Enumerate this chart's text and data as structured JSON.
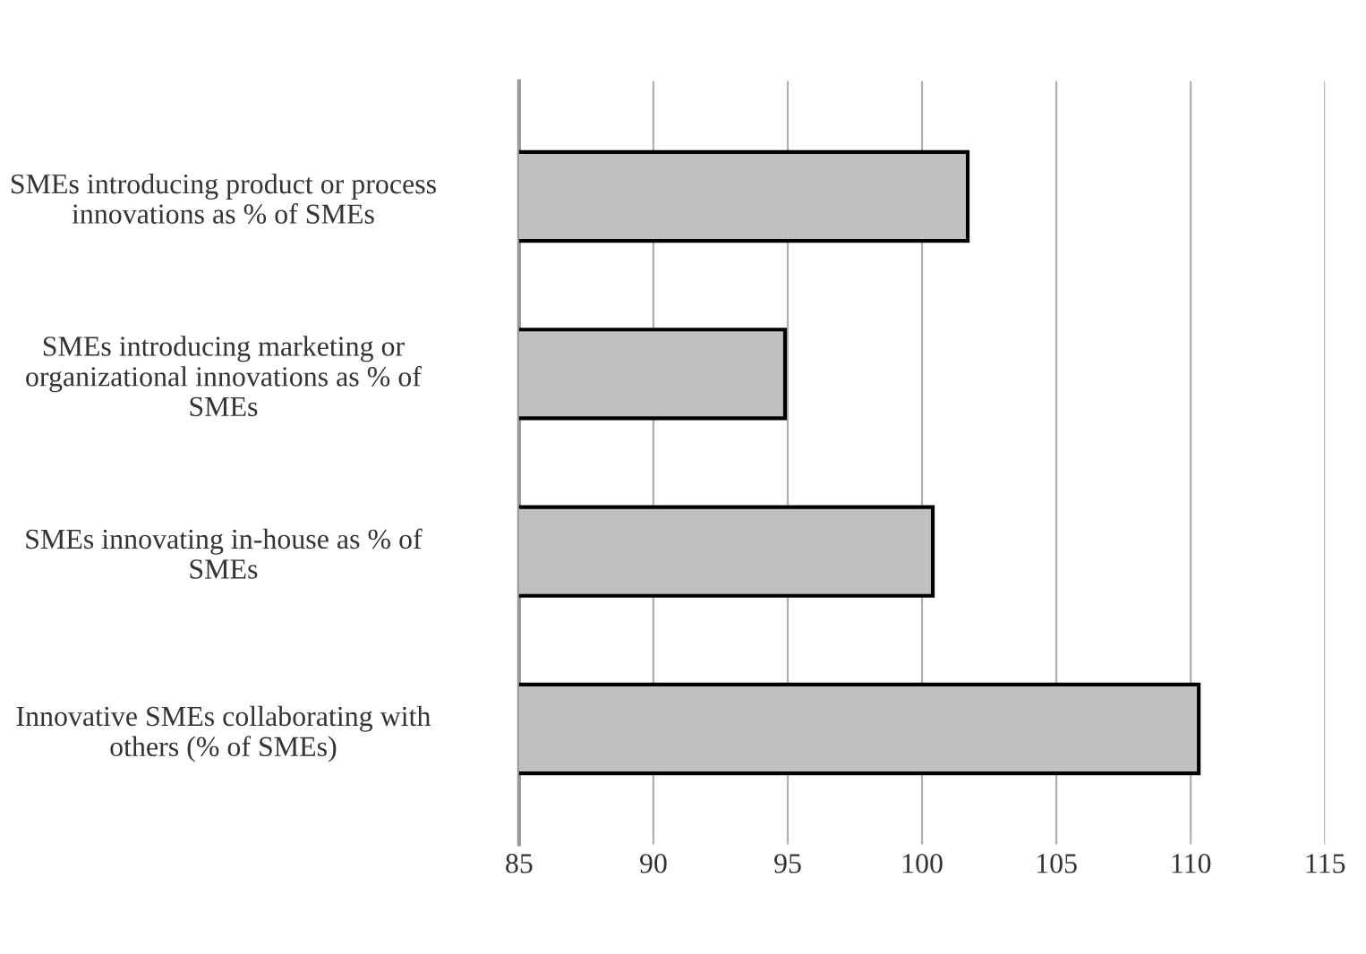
{
  "chart_data": {
    "type": "bar",
    "orientation": "horizontal",
    "categories": [
      "SMEs introducing product or process\ninnovations as % of SMEs",
      "SMEs introducing marketing or\norganizational innovations as % of\nSMEs",
      "SMEs innovating in-house as % of\nSMEs",
      "Innovative SMEs collaborating with\nothers (% of SMEs)"
    ],
    "values": [
      101.7,
      94.9,
      100.4,
      110.3
    ],
    "color": "#bfc0c2",
    "xlim": [
      85,
      115
    ],
    "xticks": [
      85,
      90,
      95,
      100,
      105,
      110,
      115
    ],
    "grid": "x"
  }
}
